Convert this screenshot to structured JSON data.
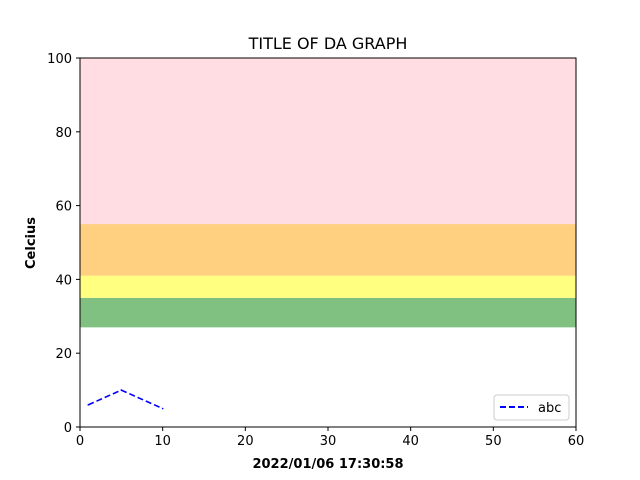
{
  "chart_data": {
    "type": "line",
    "title": "TITLE OF DA GRAPH",
    "xlabel": "2022/01/06 17:30:58",
    "ylabel": "Celcius",
    "xlim": [
      0,
      60
    ],
    "ylim": [
      0,
      100
    ],
    "xticks": [
      "0",
      "10",
      "20",
      "30",
      "40",
      "50",
      "60"
    ],
    "yticks": [
      "0",
      "20",
      "40",
      "60",
      "80",
      "100"
    ],
    "grid": false,
    "legend_position": "lower-right",
    "bands": [
      {
        "from": 27,
        "to": 35,
        "color": "#80c080"
      },
      {
        "from": 35,
        "to": 41,
        "color": "#ffff80"
      },
      {
        "from": 41,
        "to": 55,
        "color": "#ffd080"
      },
      {
        "from": 55,
        "to": 100,
        "color": "#ffdde2"
      }
    ],
    "series": [
      {
        "name": "abc",
        "color": "#0000ff",
        "style": "dashed",
        "x": [
          1,
          5,
          10
        ],
        "y": [
          6,
          10,
          5
        ]
      }
    ]
  }
}
